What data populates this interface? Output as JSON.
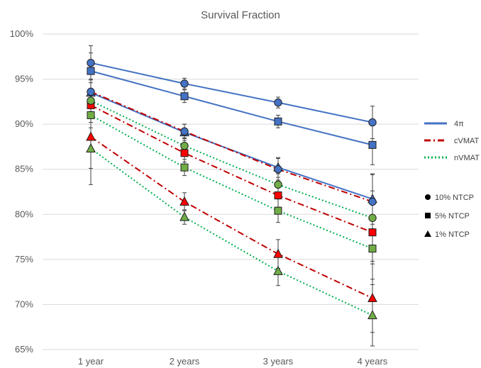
{
  "chart_data": {
    "type": "line",
    "title": "Survival Fraction",
    "xlabel": "",
    "ylabel": "",
    "categories": [
      "1 year",
      "2 years",
      "3 years",
      "4 years"
    ],
    "ylim": [
      65,
      100
    ],
    "yticks": [
      65,
      70,
      75,
      80,
      85,
      90,
      95,
      100
    ],
    "ytick_labels": [
      "65%",
      "70%",
      "75%",
      "80%",
      "85%",
      "90%",
      "95%",
      "100%"
    ],
    "grid": true,
    "legend_placement": "right",
    "legend_lines": [
      {
        "label": "4π",
        "color": "#4472c4",
        "dash": "solid"
      },
      {
        "label": "cVMAT",
        "color": "#c00000",
        "dash": "dashdot"
      },
      {
        "label": "nVMAT",
        "color": "#00b050",
        "dash": "dotted"
      }
    ],
    "legend_markers": [
      {
        "label": "10% NTCP",
        "marker": "circle"
      },
      {
        "label": "5% NTCP",
        "marker": "square"
      },
      {
        "label": "1% NTCP",
        "marker": "triangle"
      }
    ],
    "series": [
      {
        "group": "4π",
        "ntcp": "10% NTCP",
        "marker": "circle",
        "line_color": "#4472c4",
        "fill": "#4472c4",
        "dash": "solid",
        "values": [
          96.8,
          94.5,
          92.4,
          90.2
        ],
        "errors": [
          1.9,
          0.6,
          0.6,
          1.8
        ]
      },
      {
        "group": "4π",
        "ntcp": "5% NTCP",
        "marker": "square",
        "line_color": "#4472c4",
        "fill": "#4472c4",
        "dash": "solid",
        "values": [
          95.9,
          93.1,
          90.3,
          87.7
        ],
        "errors": [
          2.0,
          0.7,
          0.7,
          2.2
        ]
      },
      {
        "group": "4π",
        "ntcp": "1% NTCP",
        "marker": "triangle",
        "line_color": "#4472c4",
        "fill": "#4472c4",
        "dash": "solid",
        "values": [
          93.5,
          89.1,
          85.2,
          81.7
        ],
        "errors": [
          2.3,
          0.9,
          1.1,
          2.8
        ]
      },
      {
        "group": "cVMAT",
        "ntcp": "10% NTCP",
        "marker": "circle",
        "line_color": "#c00000",
        "fill": "#4472c4",
        "dash": "dashdot",
        "values": [
          93.6,
          89.2,
          85.0,
          81.4
        ],
        "errors": [
          2.2,
          0.8,
          1.2,
          3.0
        ]
      },
      {
        "group": "cVMAT",
        "ntcp": "5% NTCP",
        "marker": "square",
        "line_color": "#c00000",
        "fill": "#ff0000",
        "dash": "dashdot",
        "values": [
          92.1,
          86.8,
          82.1,
          78.0
        ],
        "errors": [
          2.5,
          1.0,
          1.3,
          3.2
        ]
      },
      {
        "group": "cVMAT",
        "ntcp": "1% NTCP",
        "marker": "triangle",
        "line_color": "#c00000",
        "fill": "#ff0000",
        "dash": "dashdot",
        "values": [
          88.6,
          81.4,
          75.6,
          70.7
        ],
        "errors": [
          3.5,
          1.0,
          1.6,
          3.8
        ]
      },
      {
        "group": "nVMAT",
        "ntcp": "10% NTCP",
        "marker": "circle",
        "line_color": "#00b050",
        "fill": "#70ad47",
        "dash": "dotted",
        "values": [
          92.6,
          87.6,
          83.3,
          79.6
        ],
        "errors": [
          2.4,
          0.9,
          1.2,
          3.0
        ]
      },
      {
        "group": "nVMAT",
        "ntcp": "5% NTCP",
        "marker": "square",
        "line_color": "#00b050",
        "fill": "#70ad47",
        "dash": "dotted",
        "values": [
          91.0,
          85.2,
          80.4,
          76.2
        ],
        "errors": [
          2.6,
          0.9,
          1.3,
          3.4
        ]
      },
      {
        "group": "nVMAT",
        "ntcp": "1% NTCP",
        "marker": "triangle",
        "line_color": "#00b050",
        "fill": "#70ad47",
        "dash": "dotted",
        "values": [
          87.3,
          79.7,
          73.7,
          68.8
        ],
        "errors": [
          4.0,
          0.8,
          1.6,
          3.4
        ]
      }
    ]
  }
}
